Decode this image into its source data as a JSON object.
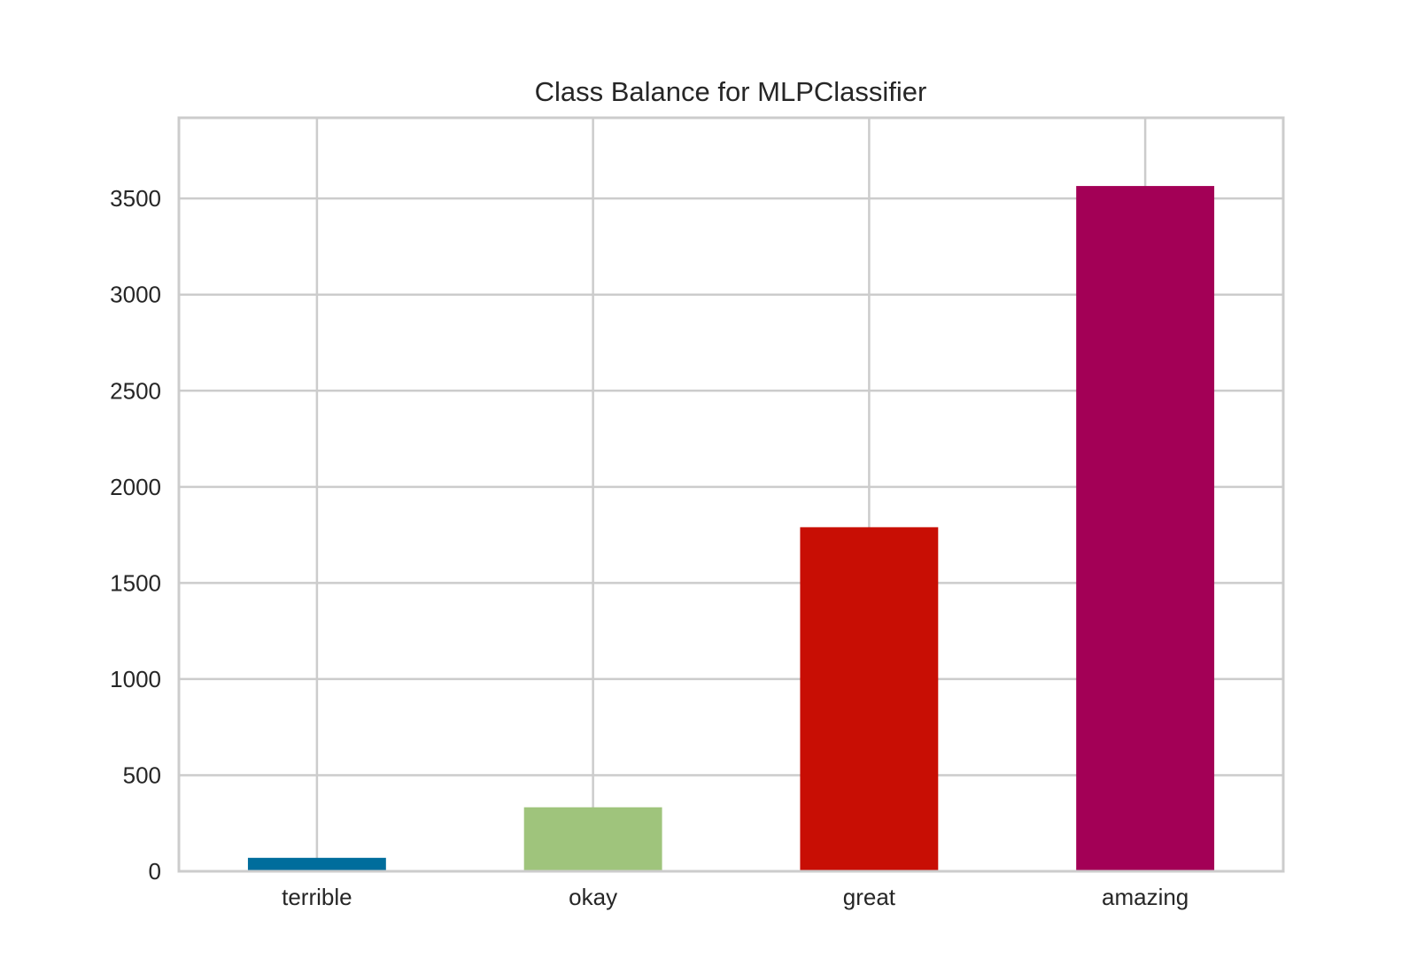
{
  "chart_data": {
    "type": "bar",
    "title": "Class Balance for MLPClassifier",
    "xlabel": "",
    "ylabel": "",
    "categories": [
      "terrible",
      "okay",
      "great",
      "amazing"
    ],
    "values": [
      70,
      333,
      1790,
      3565
    ],
    "colors": [
      "#006d9c",
      "#9fc47c",
      "#c80e04",
      "#a30056"
    ],
    "ylim": [
      0,
      3920
    ],
    "yticks": [
      0,
      500,
      1000,
      1500,
      2000,
      2500,
      3000,
      3500
    ],
    "ytick_labels": [
      "0",
      "500",
      "1000",
      "1500",
      "2000",
      "2500",
      "3000",
      "3500"
    ],
    "grid": true,
    "legend": "none"
  }
}
